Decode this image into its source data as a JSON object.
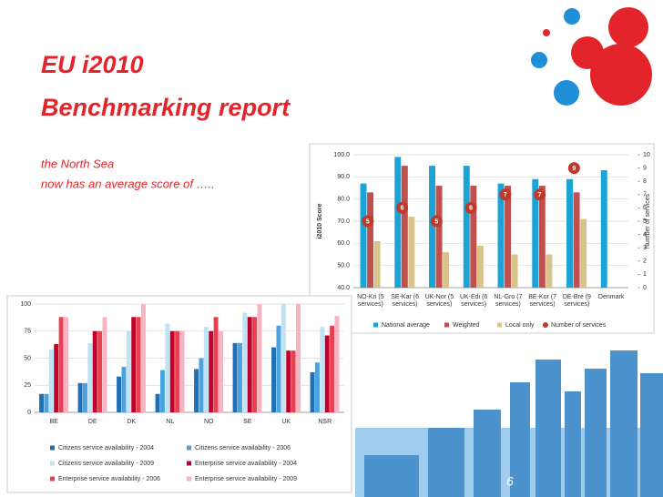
{
  "slide": {
    "title_line1": "EU i2010",
    "title_line2": "Benchmarking report",
    "text_line1": "the North Sea",
    "text_line2": "now has an average score of  …..",
    "page_number": "6"
  },
  "chart_data": [
    {
      "type": "bar",
      "categories": [
        "NO-Kri (5 services)",
        "SE-Kar (6 services)",
        "UK-Nor (5 services)",
        "UK-Edi (6 services)",
        "NL-Gro (7 services)",
        "BE-Kor (7 services)",
        "DE-Bre (9 services)",
        "Denmark"
      ],
      "series": [
        {
          "name": "National average",
          "color": "#1aa3d6",
          "values": [
            87,
            99,
            95,
            95,
            87,
            89,
            89,
            93
          ]
        },
        {
          "name": "Weighted",
          "color": "#c0504d",
          "values": [
            83,
            95,
            86,
            86,
            86,
            86,
            83,
            null
          ]
        },
        {
          "name": "Local only",
          "color": "#d9c38a",
          "values": [
            61,
            72,
            56,
            59,
            55,
            55,
            71,
            null
          ]
        },
        {
          "name": "Number of services",
          "color": "#c0392b",
          "axis": "y2",
          "values": [
            5,
            6,
            5,
            6,
            7,
            7,
            9,
            null
          ]
        }
      ],
      "ylabel": "i2010 Score",
      "y2label": "Number of services",
      "ylim": [
        40,
        100
      ],
      "yticks": [
        {
          "value": 40,
          "label": "40.0"
        },
        {
          "value": 50,
          "label": "50.0"
        },
        {
          "value": 60,
          "label": "60.0"
        },
        {
          "value": 70,
          "label": "70.0"
        },
        {
          "value": 80,
          "label": "80.0"
        },
        {
          "value": 90,
          "label": "90.0"
        },
        {
          "value": 100,
          "label": "100.0"
        }
      ],
      "y2lim": [
        0,
        10
      ],
      "y2ticks": [
        0,
        1,
        2,
        3,
        4,
        5,
        6,
        7,
        8,
        9,
        10
      ],
      "grid": true,
      "legend": "bottom"
    },
    {
      "type": "bar",
      "categories": [
        "BE",
        "DE",
        "DK",
        "NL",
        "NO",
        "SE",
        "UK",
        "NSR"
      ],
      "series": [
        {
          "name": "Citizens service availability - 2004",
          "color": "#1f6fb4",
          "values": [
            17,
            27,
            33,
            17,
            40,
            64,
            60,
            37
          ]
        },
        {
          "name": "Citizens service availability - 2006",
          "color": "#4aa3df",
          "values": [
            17,
            27,
            42,
            39,
            50,
            64,
            80,
            46
          ]
        },
        {
          "name": "Citizens service availability - 2009",
          "color": "#bde3f5",
          "values": [
            58,
            64,
            75,
            82,
            79,
            92,
            100,
            79
          ]
        },
        {
          "name": "Enterprise service availability - 2004",
          "color": "#c0002a",
          "values": [
            63,
            75,
            88,
            75,
            75,
            88,
            57,
            71
          ]
        },
        {
          "name": "Enterprise service availability - 2006",
          "color": "#e84050",
          "values": [
            88,
            75,
            88,
            75,
            88,
            88,
            57,
            80
          ]
        },
        {
          "name": "Enterprise service availability - 2009",
          "color": "#f7b3c2",
          "values": [
            88,
            88,
            100,
            75,
            75,
            100,
            100,
            89
          ]
        }
      ],
      "ylim": [
        0,
        100
      ],
      "yticks": [
        0,
        25,
        50,
        75,
        100
      ],
      "grid": true,
      "legend": "bottom"
    }
  ]
}
